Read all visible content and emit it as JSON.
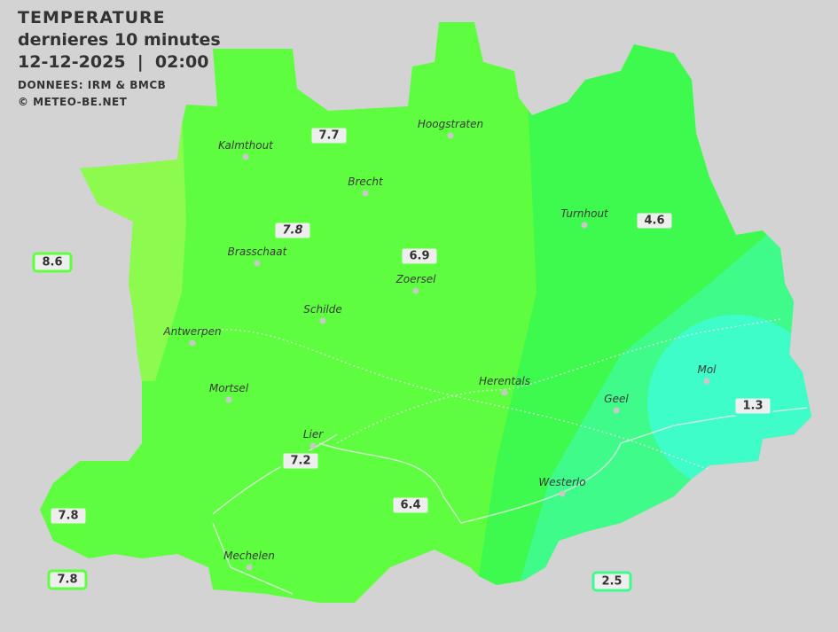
{
  "header": {
    "title": "TEMPERATURE",
    "subtitle": "dernieres 10 minutes",
    "datetime": "12-12-2025  |  02:00",
    "source": "DONNEES: IRM & BMCB",
    "copyright": "© METEO-BE.NET"
  },
  "colors": {
    "background": "#d3d3d3",
    "warm": "#8cfb4e",
    "main": "#5efd3f",
    "cooler": "#3ffa4e",
    "cool": "#3efb8a",
    "coldest": "#3efdc8"
  },
  "cities": [
    {
      "name": "Kalmthout"
    },
    {
      "name": "Hoogstraten"
    },
    {
      "name": "Brecht"
    },
    {
      "name": "Turnhout"
    },
    {
      "name": "Brasschaat"
    },
    {
      "name": "Zoersel"
    },
    {
      "name": "Schilde"
    },
    {
      "name": "Antwerpen"
    },
    {
      "name": "Mortsel"
    },
    {
      "name": "Herentals"
    },
    {
      "name": "Mol"
    },
    {
      "name": "Geel"
    },
    {
      "name": "Lier"
    },
    {
      "name": "Westerlo"
    },
    {
      "name": "Mechelen"
    }
  ],
  "readings": [
    {
      "value": "7.7",
      "color": "#5dff3f"
    },
    {
      "value": "7.8",
      "color": "#5dff3f"
    },
    {
      "value": "6.9",
      "color": "#5dff3f"
    },
    {
      "value": "4.6",
      "color": "#3ffa4e"
    },
    {
      "value": "8.6",
      "color": "#5dff3f"
    },
    {
      "value": "1.3",
      "color": "#3efdc8"
    },
    {
      "value": "7.2",
      "color": "#5dff3f"
    },
    {
      "value": "6.4",
      "color": "#5dff3f"
    },
    {
      "value": "7.8",
      "color": "#5dff3f"
    },
    {
      "value": "7.8",
      "color": "#5dff3f"
    },
    {
      "value": "2.5",
      "color": "#3efb8a"
    }
  ]
}
